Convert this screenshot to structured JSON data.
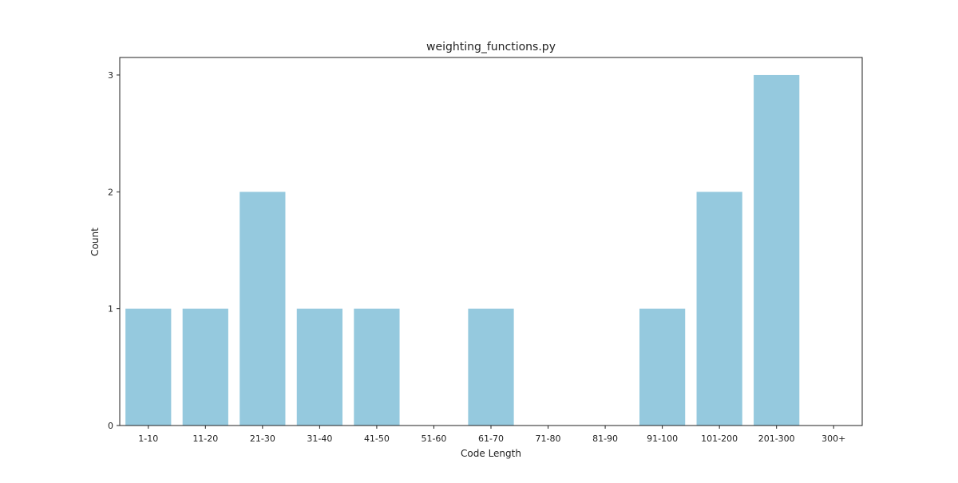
{
  "chart_data": {
    "type": "bar",
    "title": "weighting_functions.py",
    "xlabel": "Code Length",
    "ylabel": "Count",
    "categories": [
      "1-10",
      "11-20",
      "21-30",
      "31-40",
      "41-50",
      "51-60",
      "61-70",
      "71-80",
      "81-90",
      "91-100",
      "101-200",
      "201-300",
      "300+"
    ],
    "values": [
      1,
      1,
      2,
      1,
      1,
      0,
      1,
      0,
      0,
      1,
      2,
      3,
      0
    ],
    "yticks": [
      0,
      1,
      2,
      3
    ],
    "ylim": [
      0,
      3.15
    ],
    "grid": false,
    "legend": "none",
    "bar_color": "#95c9de",
    "axis_color": "#222222"
  }
}
